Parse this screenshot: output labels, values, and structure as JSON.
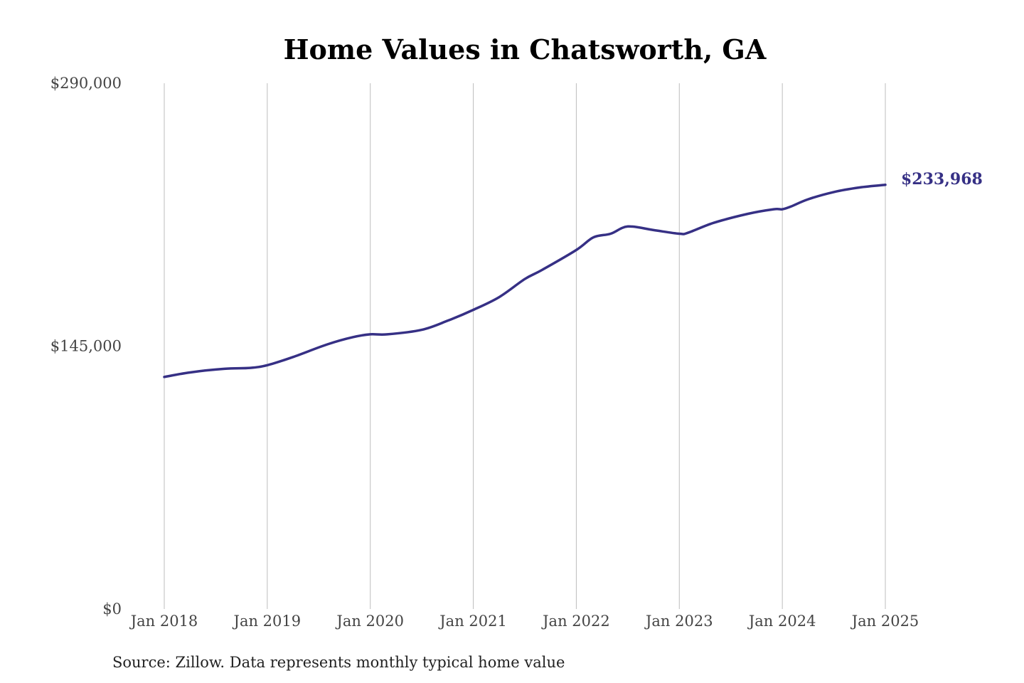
{
  "chart_data": {
    "type": "line",
    "title": "Home Values in Chatsworth, GA",
    "source": "Source: Zillow. Data represents monthly typical home value",
    "xlabel": "",
    "ylabel": "",
    "ylim": [
      0,
      290000
    ],
    "y_ticks": [
      {
        "value": 0,
        "label": "$0"
      },
      {
        "value": 145000,
        "label": "$145,000"
      },
      {
        "value": 290000,
        "label": "$290,000"
      }
    ],
    "x_ticks": [
      {
        "value": "2018-01",
        "label": "Jan 2018"
      },
      {
        "value": "2019-01",
        "label": "Jan 2019"
      },
      {
        "value": "2020-01",
        "label": "Jan 2020"
      },
      {
        "value": "2021-01",
        "label": "Jan 2021"
      },
      {
        "value": "2022-01",
        "label": "Jan 2022"
      },
      {
        "value": "2023-01",
        "label": "Jan 2023"
      },
      {
        "value": "2024-01",
        "label": "Jan 2024"
      },
      {
        "value": "2025-01",
        "label": "Jan 2025"
      }
    ],
    "grid": {
      "vertical": true,
      "horizontal": false
    },
    "series_color": "#363085",
    "end_label": "$233,968",
    "series": [
      {
        "x": [
          "2018-01",
          "2018-04",
          "2018-08",
          "2018-11",
          "2019-01",
          "2019-04",
          "2019-08",
          "2019-11",
          "2020-01",
          "2020-03",
          "2020-07",
          "2020-10",
          "2021-01",
          "2021-04",
          "2021-07",
          "2021-09",
          "2022-01",
          "2022-03",
          "2022-05",
          "2022-07",
          "2022-10",
          "2023-01",
          "2023-02",
          "2023-05",
          "2023-09",
          "2023-12",
          "2024-01",
          "2024-02",
          "2024-04",
          "2024-07",
          "2024-10",
          "2025-01"
        ],
        "values": [
          128000,
          130500,
          132500,
          133000,
          134500,
          139000,
          146000,
          150000,
          151500,
          151500,
          154000,
          159000,
          165000,
          172000,
          182000,
          187000,
          198000,
          205000,
          207000,
          211000,
          209000,
          207000,
          207500,
          213000,
          218000,
          220500,
          220500,
          222000,
          226000,
          230000,
          232500,
          233968
        ]
      }
    ]
  }
}
